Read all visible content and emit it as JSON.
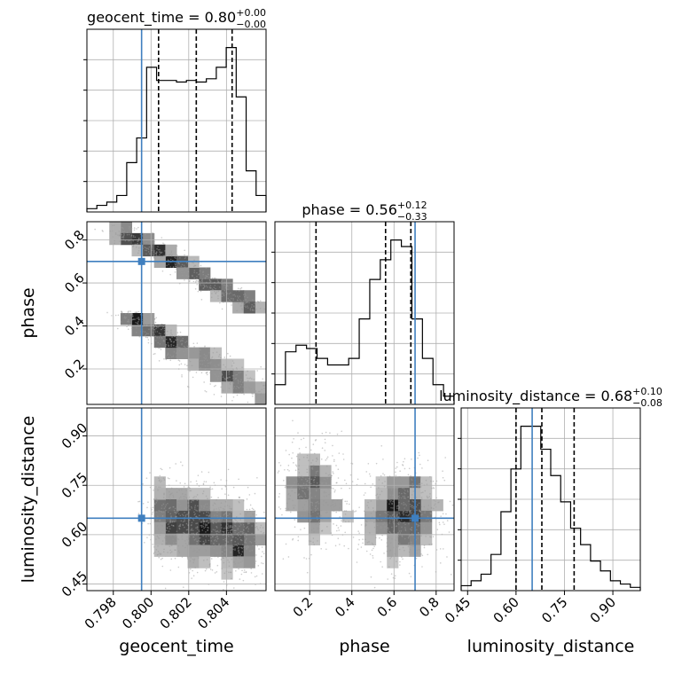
{
  "colors": {
    "truth": "#3f7fbf",
    "hist": "#000000",
    "grid": "#b0b0b0"
  },
  "chart_data": {
    "type": "corner",
    "parameters": [
      "geocent_time",
      "phase",
      "luminosity_distance"
    ],
    "axis_labels": {
      "geocent_time": "geocent_time",
      "phase": "phase",
      "luminosity_distance": "luminosity_distance"
    },
    "ticks": {
      "geocent_time": [
        "0.798",
        "0.800",
        "0.802",
        "0.804"
      ],
      "phase": [
        "0.2",
        "0.4",
        "0.6",
        "0.8"
      ],
      "luminosity_distance": [
        "0.45",
        "0.60",
        "0.75",
        "0.90"
      ]
    },
    "ranges": {
      "geocent_time": [
        0.7966,
        0.8061
      ],
      "phase": [
        0.035,
        0.885
      ],
      "luminosity_distance": [
        0.43,
        0.985
      ]
    },
    "truths": {
      "geocent_time": 0.7995,
      "phase": 0.7,
      "luminosity_distance": 0.65
    },
    "titles": [
      {
        "param": "geocent_time",
        "name": "geocent_time",
        "median": "0.80",
        "plus": "+0.00",
        "minus": "−0.00"
      },
      {
        "param": "phase",
        "name": "phase",
        "median": "0.56",
        "plus": "+0.12",
        "minus": "−0.33"
      },
      {
        "param": "luminosity_distance",
        "name": "luminosity_distance",
        "median": "0.68",
        "plus": "+0.10",
        "minus": "−0.08"
      }
    ],
    "quantiles": {
      "geocent_time": [
        0.8004,
        0.8024,
        0.8043
      ],
      "phase": [
        0.23,
        0.56,
        0.68
      ],
      "luminosity_distance": [
        0.6,
        0.68,
        0.78
      ]
    },
    "histograms": {
      "geocent_time": [
        0.02,
        0.04,
        0.06,
        0.1,
        0.3,
        0.45,
        0.88,
        0.8,
        0.8,
        0.79,
        0.8,
        0.79,
        0.81,
        0.88,
        1.0,
        0.7,
        0.25,
        0.1
      ],
      "phase": [
        0.12,
        0.32,
        0.36,
        0.34,
        0.28,
        0.24,
        0.24,
        0.28,
        0.52,
        0.76,
        0.88,
        1.0,
        0.96,
        0.52,
        0.28,
        0.12,
        0.05
      ],
      "luminosity_distance": [
        0.03,
        0.06,
        0.1,
        0.22,
        0.48,
        0.74,
        1.0,
        1.0,
        0.86,
        0.7,
        0.54,
        0.38,
        0.28,
        0.18,
        0.12,
        0.06,
        0.04,
        0.02
      ]
    },
    "pairs": [
      {
        "x": "geocent_time",
        "y": "phase",
        "shape": "sideways-s"
      },
      {
        "x": "geocent_time",
        "y": "luminosity_distance",
        "shape": "anticorrelated-blob"
      },
      {
        "x": "phase",
        "y": "luminosity_distance",
        "shape": "bimodal"
      }
    ],
    "grid": true,
    "contour_levels": 3
  }
}
